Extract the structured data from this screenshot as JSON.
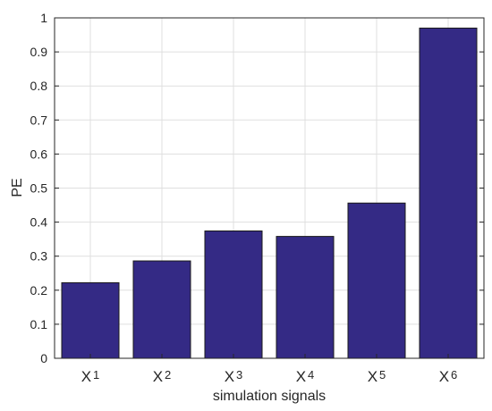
{
  "chart_data": {
    "type": "bar",
    "categories": [
      {
        "letter": "X",
        "sub": "1"
      },
      {
        "letter": "X",
        "sub": "2"
      },
      {
        "letter": "X",
        "sub": "3"
      },
      {
        "letter": "X",
        "sub": "4"
      },
      {
        "letter": "X",
        "sub": "5"
      },
      {
        "letter": "X",
        "sub": "6"
      }
    ],
    "values": [
      0.222,
      0.286,
      0.374,
      0.358,
      0.456,
      0.97
    ],
    "xlabel": "simulation signals",
    "ylabel": "PE",
    "ylim": [
      0,
      1
    ],
    "yticks": [
      "0",
      "0.1",
      "0.2",
      "0.3",
      "0.4",
      "0.5",
      "0.6",
      "0.7",
      "0.8",
      "0.9",
      "1"
    ],
    "grid": true,
    "bar_color": "#342a85",
    "bar_edge_color": "#1a1a1a"
  }
}
